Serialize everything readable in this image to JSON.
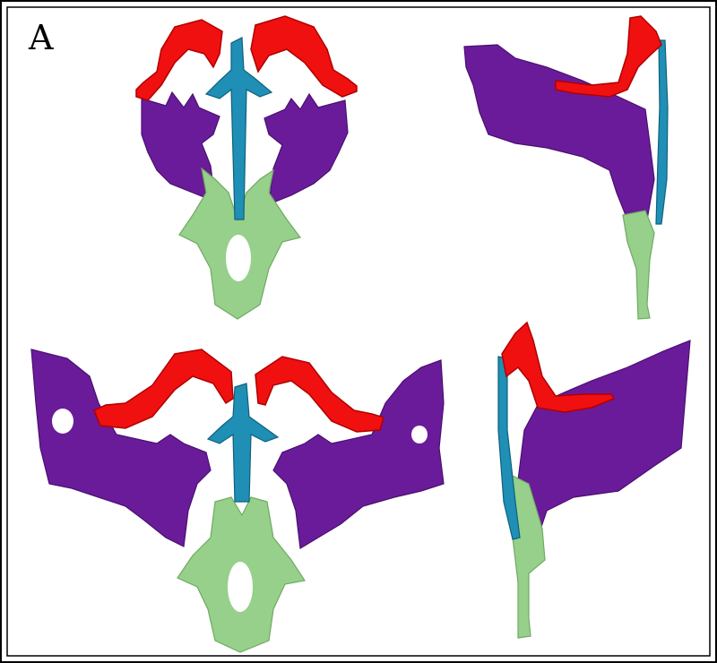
{
  "panel_label": "A"
}
